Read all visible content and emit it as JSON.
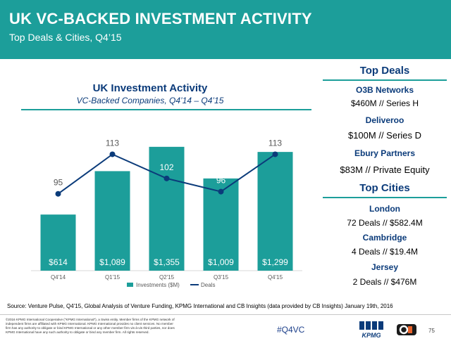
{
  "header": {
    "title": "UK VC-BACKED INVESTMENT ACTIVITY",
    "subtitle": "Top Deals & Cities, Q4’15"
  },
  "chart_data": {
    "type": "bar+line",
    "title": "UK Investment Activity",
    "subtitle": "VC-Backed Companies, Q4’14 – Q4’15",
    "categories": [
      "Q4'14",
      "Q1'15",
      "Q2'15",
      "Q3'15",
      "Q4'15"
    ],
    "series": [
      {
        "name": "Investments ($M)",
        "type": "bar",
        "values": [
          614,
          1089,
          1355,
          1009,
          1299
        ],
        "labels": [
          "$614",
          "$1,089",
          "$1,355",
          "$1,009",
          "$1,299"
        ],
        "color": "#1c9e9a",
        "ylim": [
          0,
          1500
        ]
      },
      {
        "name": "Deals",
        "type": "line",
        "values": [
          95,
          113,
          102,
          96,
          113
        ],
        "labels": [
          "95",
          "113",
          "102",
          "96",
          "113"
        ],
        "color": "#0b3b7a",
        "ylim": [
          60,
          125
        ]
      }
    ],
    "legend": "bottom",
    "grid": false
  },
  "top_deals": {
    "heading": "Top Deals",
    "items": [
      {
        "name": "O3B Networks",
        "value": "$460M // Series H"
      },
      {
        "name": "Deliveroo",
        "value": "$100M // Series D"
      },
      {
        "name": "Ebury Partners",
        "value": "$83M // Private Equity"
      }
    ]
  },
  "top_cities": {
    "heading": "Top Cities",
    "items": [
      {
        "name": "London",
        "value": "72 Deals // $582.4M"
      },
      {
        "name": "Cambridge",
        "value": "4 Deals // $19.4M"
      },
      {
        "name": "Jersey",
        "value": "2 Deals // $476M"
      }
    ]
  },
  "footer": {
    "source": "Source: Venture Pulse, Q4'15, Global Analysis of Venture Funding, KPMG International and CB Insights (data provided by CB Insights) January 19th, 2016",
    "disclaimer": "©2016 KPMG International Cooperative (\"KPMG International\"), a Swiss entity. Member firms of the KPMG network of independent firms are affiliated with KPMG International. KPMG International provides no client services. No member firm has any authority to obligate or bind KPMG International or any other member firm vis-à-vis third parties, nor does KPMG International have any such authority to obligate or bind any member firm. All rights reserved.",
    "hashtag": "#Q4VC",
    "kpmg_logo_text": "KPMG",
    "page_number": "75"
  },
  "colors": {
    "accent": "#1c9e9a",
    "navy": "#0b3b7a"
  }
}
